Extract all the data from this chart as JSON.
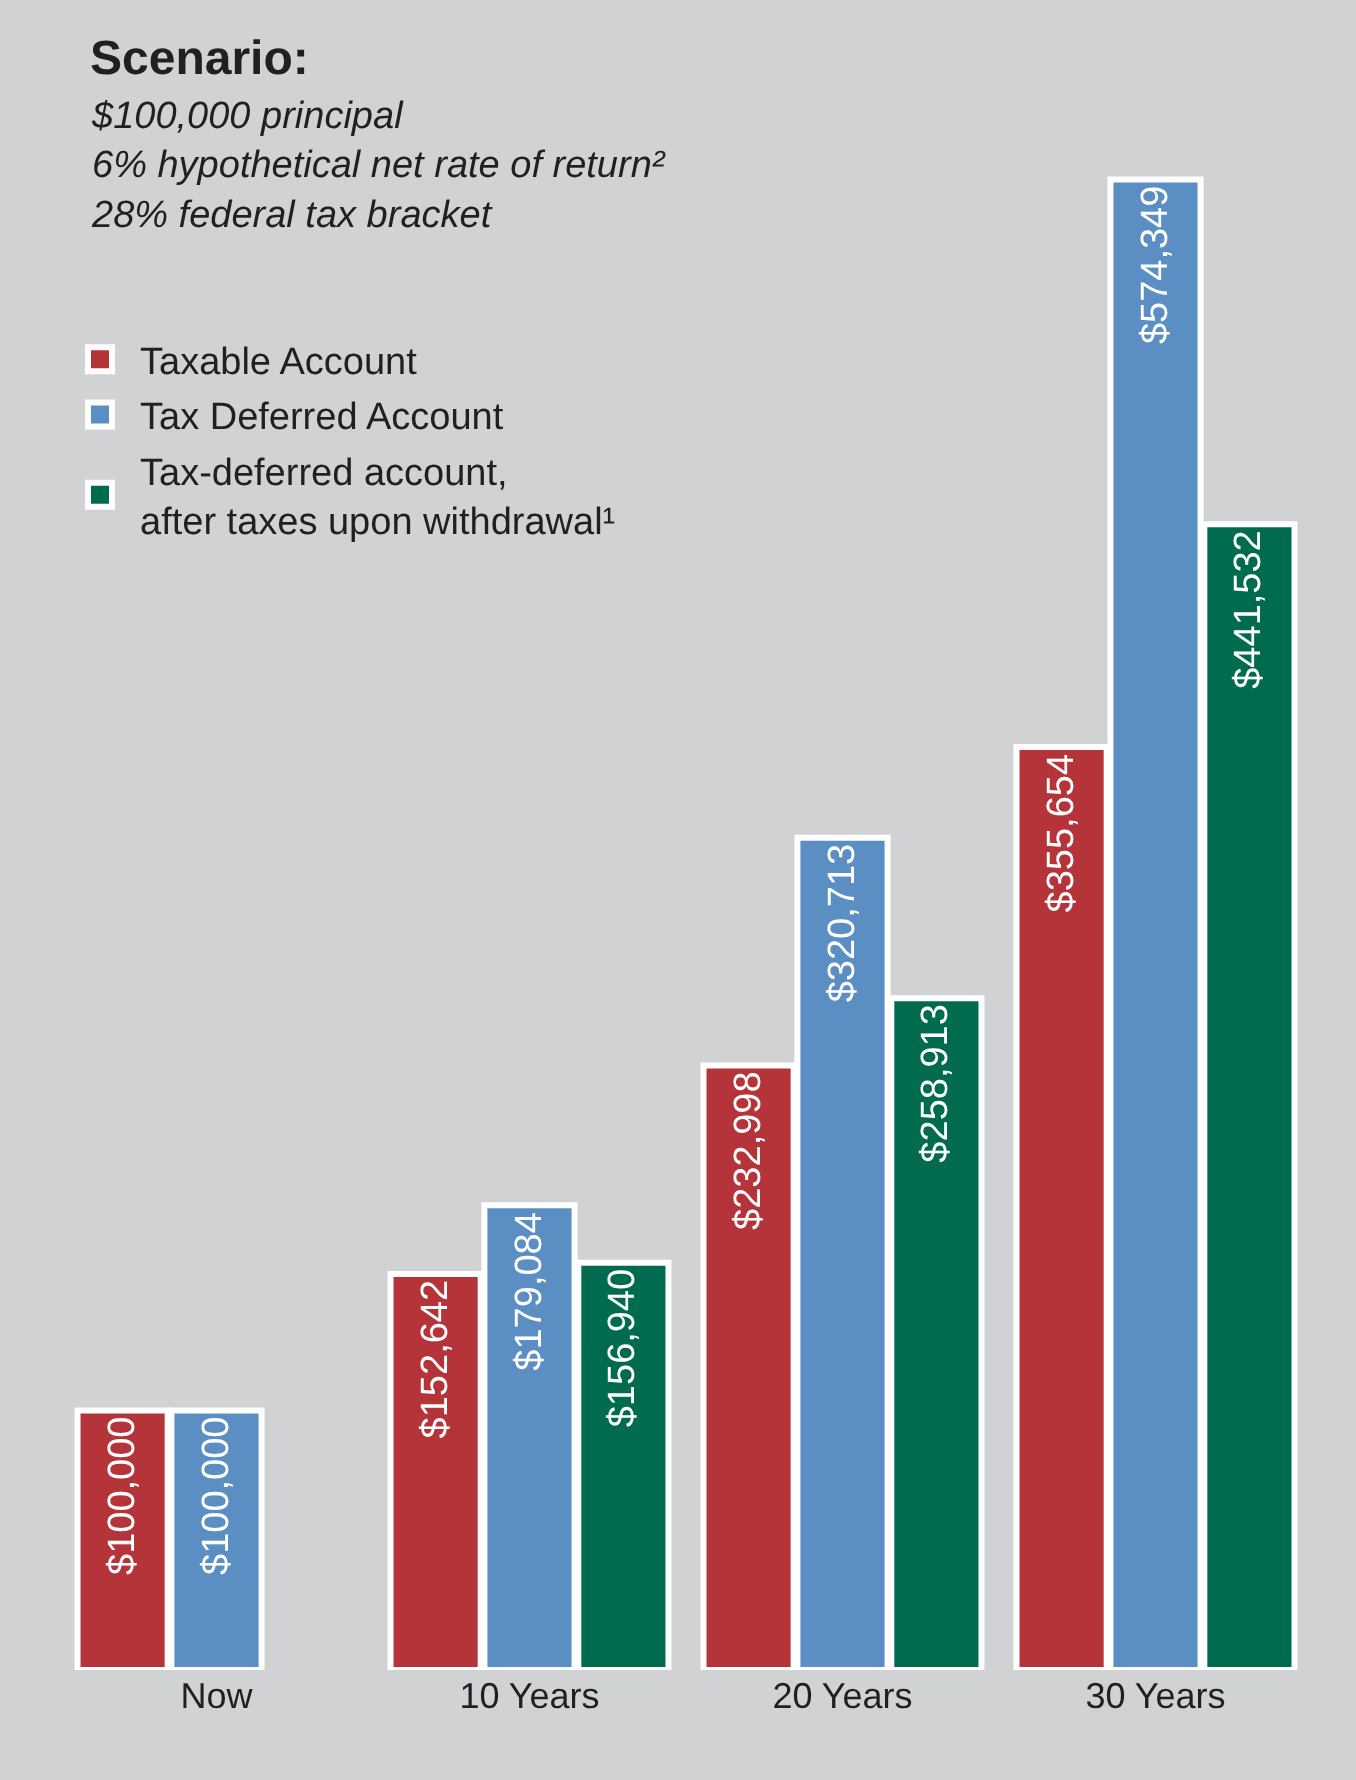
{
  "chart_data": {
    "type": "bar",
    "title": "Scenario:",
    "subtitle": "$100,000 principal\n6% hypothetical net rate of return²\n28% federal tax bracket",
    "categories": [
      "Now",
      "10 Years",
      "20 Years",
      "30 Years"
    ],
    "series": [
      {
        "name": "Taxable Account",
        "color": "#b5343a",
        "values": [
          100000,
          152642,
          232998,
          355654
        ],
        "value_labels": [
          "$100,000",
          "$152,642",
          "$232,998",
          "$355,654"
        ]
      },
      {
        "name": "Tax Deferred Account",
        "color": "#5b8fc4",
        "values": [
          100000,
          179084,
          320713,
          574349
        ],
        "value_labels": [
          "$100,000",
          "$179,084",
          "$320,713",
          "$574,349"
        ]
      },
      {
        "name": "Tax-deferred account,\nafter taxes upon withdrawal¹",
        "color": "#006b4f",
        "values": [
          null,
          156940,
          258913,
          441532
        ],
        "value_labels": [
          null,
          "$156,940",
          "$258,913",
          "$441,532"
        ]
      }
    ],
    "legend": "top left"
  }
}
